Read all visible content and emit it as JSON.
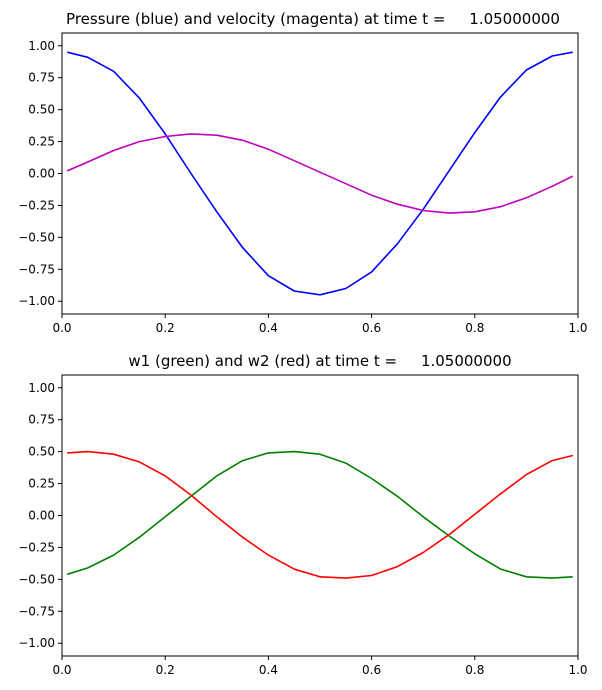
{
  "chart_data": [
    {
      "type": "line",
      "title": "Pressure (blue) and velocity (magenta) at time t =     1.05000000",
      "xlim": [
        0,
        1
      ],
      "ylim": [
        -1.1,
        1.1
      ],
      "xticks": [
        0,
        0.2,
        0.4,
        0.6,
        0.8,
        1.0
      ],
      "xtick_labels": [
        "0.0",
        "0.2",
        "0.4",
        "0.6",
        "0.8",
        "1.0"
      ],
      "yticks": [
        -1.0,
        -0.75,
        -0.5,
        -0.25,
        0.0,
        0.25,
        0.5,
        0.75,
        1.0
      ],
      "ytick_labels": [
        "−1.00",
        "−0.75",
        "−0.50",
        "−0.25",
        "0.00",
        "0.25",
        "0.50",
        "0.75",
        "1.00"
      ],
      "grid": false,
      "series": [
        {
          "color": "#0000ff",
          "x": [
            0.01,
            0.05,
            0.1,
            0.15,
            0.2,
            0.25,
            0.3,
            0.35,
            0.4,
            0.45,
            0.5,
            0.55,
            0.6,
            0.65,
            0.7,
            0.75,
            0.8,
            0.85,
            0.9,
            0.95,
            0.99
          ],
          "y": [
            0.95,
            0.91,
            0.8,
            0.59,
            0.31,
            0.0,
            -0.3,
            -0.58,
            -0.8,
            -0.92,
            -0.95,
            -0.9,
            -0.77,
            -0.55,
            -0.28,
            0.02,
            0.32,
            0.6,
            0.81,
            0.92,
            0.95
          ]
        },
        {
          "color": "#bf00bf",
          "x": [
            0.01,
            0.05,
            0.1,
            0.15,
            0.2,
            0.25,
            0.3,
            0.35,
            0.4,
            0.45,
            0.5,
            0.55,
            0.6,
            0.65,
            0.7,
            0.75,
            0.8,
            0.85,
            0.9,
            0.95,
            0.99
          ],
          "y": [
            0.02,
            0.09,
            0.18,
            0.25,
            0.29,
            0.31,
            0.3,
            0.26,
            0.19,
            0.1,
            0.01,
            -0.08,
            -0.17,
            -0.24,
            -0.29,
            -0.31,
            -0.3,
            -0.26,
            -0.19,
            -0.1,
            -0.02
          ]
        }
      ]
    },
    {
      "type": "line",
      "title": "w1 (green) and w2 (red) at time t =     1.05000000",
      "xlim": [
        0,
        1
      ],
      "ylim": [
        -1.1,
        1.1
      ],
      "xticks": [
        0,
        0.2,
        0.4,
        0.6,
        0.8,
        1.0
      ],
      "xtick_labels": [
        "0.0",
        "0.2",
        "0.4",
        "0.6",
        "0.8",
        "1.0"
      ],
      "yticks": [
        -1.0,
        -0.75,
        -0.5,
        -0.25,
        0.0,
        0.25,
        0.5,
        0.75,
        1.0
      ],
      "ytick_labels": [
        "−1.00",
        "−0.75",
        "−0.50",
        "−0.25",
        "0.00",
        "0.25",
        "0.50",
        "0.75",
        "1.00"
      ],
      "grid": false,
      "series": [
        {
          "color": "#008000",
          "x": [
            0.01,
            0.05,
            0.1,
            0.15,
            0.2,
            0.25,
            0.3,
            0.35,
            0.4,
            0.45,
            0.5,
            0.55,
            0.6,
            0.65,
            0.7,
            0.75,
            0.8,
            0.85,
            0.9,
            0.95,
            0.99
          ],
          "y": [
            -0.46,
            -0.41,
            -0.31,
            -0.17,
            -0.01,
            0.15,
            0.31,
            0.43,
            0.49,
            0.5,
            0.48,
            0.41,
            0.29,
            0.15,
            -0.01,
            -0.16,
            -0.3,
            -0.42,
            -0.48,
            -0.49,
            -0.48
          ]
        },
        {
          "color": "#ff0000",
          "x": [
            0.01,
            0.05,
            0.1,
            0.15,
            0.2,
            0.25,
            0.3,
            0.35,
            0.4,
            0.45,
            0.5,
            0.55,
            0.6,
            0.65,
            0.7,
            0.75,
            0.8,
            0.85,
            0.9,
            0.95,
            0.99
          ],
          "y": [
            0.49,
            0.5,
            0.48,
            0.42,
            0.31,
            0.16,
            -0.01,
            -0.17,
            -0.31,
            -0.42,
            -0.48,
            -0.49,
            -0.47,
            -0.4,
            -0.29,
            -0.15,
            0.01,
            0.17,
            0.32,
            0.43,
            0.47
          ]
        }
      ]
    }
  ]
}
